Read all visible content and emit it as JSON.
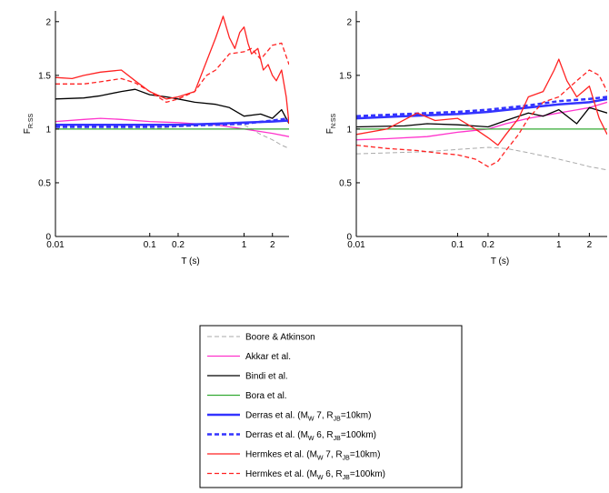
{
  "chart_data": [
    {
      "type": "line",
      "xscale": "log",
      "xlim": [
        0.01,
        3
      ],
      "ylim": [
        0,
        2.1
      ],
      "xlabel": "T (s)",
      "ylabel": "F",
      "ylabel_sub": "R:SS",
      "xticks": [
        0.01,
        0.1,
        0.2,
        1,
        2
      ],
      "xticklabels": [
        "0.01",
        "0.1",
        "0.2",
        "1",
        "2"
      ],
      "yticks": [
        0,
        0.5,
        1,
        1.5,
        2
      ],
      "yticklabels": [
        "0",
        "0.5",
        "1",
        "1.5",
        "2"
      ],
      "series": [
        {
          "key": "boore",
          "x": [
            0.01,
            0.05,
            0.1,
            0.2,
            0.5,
            1,
            1.5,
            2,
            2.5,
            3
          ],
          "y": [
            1.0,
            1.0,
            1.0,
            1.02,
            1.04,
            1.04,
            0.95,
            0.9,
            0.85,
            0.82
          ]
        },
        {
          "key": "akkar",
          "x": [
            0.01,
            0.02,
            0.03,
            0.05,
            0.1,
            0.2,
            0.3,
            0.5,
            1,
            2,
            3
          ],
          "y": [
            1.07,
            1.09,
            1.1,
            1.09,
            1.07,
            1.06,
            1.05,
            1.04,
            1.0,
            0.96,
            0.93
          ]
        },
        {
          "key": "bindi",
          "x": [
            0.01,
            0.02,
            0.03,
            0.05,
            0.07,
            0.1,
            0.15,
            0.2,
            0.3,
            0.5,
            0.7,
            1,
            1.5,
            2,
            2.5,
            3
          ],
          "y": [
            1.28,
            1.29,
            1.31,
            1.35,
            1.37,
            1.32,
            1.3,
            1.28,
            1.25,
            1.23,
            1.2,
            1.12,
            1.14,
            1.1,
            1.18,
            1.05
          ]
        },
        {
          "key": "bora",
          "x": [
            0.01,
            3
          ],
          "y": [
            1.0,
            1.0
          ]
        },
        {
          "key": "derras7",
          "x": [
            0.01,
            0.03,
            0.1,
            0.2,
            0.5,
            1,
            2,
            3
          ],
          "y": [
            1.04,
            1.04,
            1.04,
            1.04,
            1.05,
            1.06,
            1.07,
            1.08
          ]
        },
        {
          "key": "derras6",
          "x": [
            0.01,
            0.03,
            0.1,
            0.2,
            0.5,
            1,
            2,
            3
          ],
          "y": [
            1.02,
            1.02,
            1.02,
            1.03,
            1.04,
            1.05,
            1.08,
            1.1
          ]
        },
        {
          "key": "hermkes7",
          "x": [
            0.01,
            0.015,
            0.02,
            0.03,
            0.05,
            0.07,
            0.1,
            0.15,
            0.2,
            0.3,
            0.5,
            0.6,
            0.7,
            0.8,
            0.9,
            1,
            1.1,
            1.2,
            1.4,
            1.6,
            1.8,
            2,
            2.2,
            2.5,
            2.8,
            3
          ],
          "y": [
            1.48,
            1.47,
            1.5,
            1.53,
            1.55,
            1.45,
            1.35,
            1.28,
            1.3,
            1.35,
            1.85,
            2.05,
            1.85,
            1.75,
            1.9,
            1.95,
            1.8,
            1.7,
            1.75,
            1.55,
            1.6,
            1.5,
            1.45,
            1.55,
            1.3,
            1.05
          ]
        },
        {
          "key": "hermkes6",
          "x": [
            0.01,
            0.02,
            0.03,
            0.05,
            0.07,
            0.1,
            0.15,
            0.2,
            0.3,
            0.4,
            0.5,
            0.7,
            1,
            1.2,
            1.5,
            2,
            2.5,
            3
          ],
          "y": [
            1.42,
            1.42,
            1.44,
            1.47,
            1.43,
            1.35,
            1.25,
            1.28,
            1.35,
            1.5,
            1.55,
            1.7,
            1.72,
            1.75,
            1.65,
            1.78,
            1.8,
            1.6
          ]
        }
      ]
    },
    {
      "type": "line",
      "xscale": "log",
      "xlim": [
        0.01,
        3
      ],
      "ylim": [
        0,
        2.1
      ],
      "xlabel": "T (s)",
      "ylabel": "F",
      "ylabel_sub": "N:SS",
      "xticks": [
        0.01,
        0.1,
        0.2,
        1,
        2
      ],
      "xticklabels": [
        "0.01",
        "0.1",
        "0.2",
        "1",
        "2"
      ],
      "yticks": [
        0,
        0.5,
        1,
        1.5,
        2
      ],
      "yticklabels": [
        "0",
        "0.5",
        "1",
        "1.5",
        "2"
      ],
      "series": [
        {
          "key": "boore",
          "x": [
            0.01,
            0.05,
            0.1,
            0.2,
            0.3,
            0.5,
            1,
            1.5,
            2,
            3
          ],
          "y": [
            0.77,
            0.79,
            0.81,
            0.83,
            0.82,
            0.78,
            0.72,
            0.68,
            0.65,
            0.62
          ]
        },
        {
          "key": "akkar",
          "x": [
            0.01,
            0.02,
            0.05,
            0.1,
            0.2,
            0.3,
            0.5,
            1,
            2,
            3
          ],
          "y": [
            0.9,
            0.91,
            0.93,
            0.97,
            1.0,
            1.05,
            1.1,
            1.15,
            1.2,
            1.25
          ]
        },
        {
          "key": "bindi",
          "x": [
            0.01,
            0.03,
            0.05,
            0.1,
            0.2,
            0.3,
            0.5,
            0.7,
            1,
            1.5,
            2,
            3
          ],
          "y": [
            1.02,
            1.03,
            1.05,
            1.04,
            1.02,
            1.08,
            1.15,
            1.12,
            1.18,
            1.05,
            1.2,
            1.15
          ]
        },
        {
          "key": "bora",
          "x": [
            0.01,
            3
          ],
          "y": [
            1.0,
            1.0
          ]
        },
        {
          "key": "derras7",
          "x": [
            0.01,
            0.03,
            0.1,
            0.2,
            0.5,
            1,
            2,
            3
          ],
          "y": [
            1.1,
            1.12,
            1.14,
            1.16,
            1.2,
            1.23,
            1.25,
            1.28
          ]
        },
        {
          "key": "derras6",
          "x": [
            0.01,
            0.03,
            0.1,
            0.2,
            0.5,
            1,
            2,
            3
          ],
          "y": [
            1.12,
            1.14,
            1.16,
            1.18,
            1.22,
            1.26,
            1.28,
            1.3
          ]
        },
        {
          "key": "hermkes7",
          "x": [
            0.01,
            0.02,
            0.04,
            0.06,
            0.1,
            0.15,
            0.2,
            0.25,
            0.3,
            0.4,
            0.5,
            0.7,
            0.9,
            1.0,
            1.2,
            1.5,
            2,
            2.5,
            3
          ],
          "y": [
            0.95,
            1.0,
            1.15,
            1.08,
            1.1,
            1.0,
            0.92,
            0.85,
            0.95,
            1.1,
            1.3,
            1.35,
            1.55,
            1.65,
            1.45,
            1.3,
            1.4,
            1.1,
            0.95
          ]
        },
        {
          "key": "hermkes6",
          "x": [
            0.01,
            0.02,
            0.04,
            0.06,
            0.1,
            0.15,
            0.2,
            0.25,
            0.3,
            0.4,
            0.5,
            0.7,
            1,
            1.5,
            2,
            2.5,
            3
          ],
          "y": [
            0.85,
            0.82,
            0.8,
            0.78,
            0.76,
            0.72,
            0.65,
            0.7,
            0.8,
            0.95,
            1.1,
            1.25,
            1.3,
            1.45,
            1.55,
            1.5,
            1.35
          ]
        }
      ]
    }
  ],
  "legend": {
    "entries": [
      {
        "key": "boore",
        "label": "Boore & Atkinson",
        "color": "#aaaaaa",
        "dash": true,
        "width": 1
      },
      {
        "key": "akkar",
        "label": "Akkar et al.",
        "color": "#ff33cc",
        "dash": false,
        "width": 1.3
      },
      {
        "key": "bindi",
        "label": "Bindi et al.",
        "color": "#000000",
        "dash": false,
        "width": 1.3
      },
      {
        "key": "bora",
        "label": "Bora et al.",
        "color": "#33aa33",
        "dash": false,
        "width": 1.3
      },
      {
        "key": "derras7",
        "label_parts": [
          "Derras et al. (M",
          "W",
          " 7, R",
          "JB",
          "=10km)"
        ],
        "color": "#3333ff",
        "dash": false,
        "width": 2.5
      },
      {
        "key": "derras6",
        "label_parts": [
          "Derras et al. (M",
          "W",
          " 6, R",
          "JB",
          "=100km)"
        ],
        "color": "#3333ff",
        "dash": true,
        "width": 2.5
      },
      {
        "key": "hermkes7",
        "label_parts": [
          "Hermkes et al. (M",
          "W",
          " 7, R",
          "JB",
          "=10km)"
        ],
        "color": "#ff2222",
        "dash": false,
        "width": 1.3
      },
      {
        "key": "hermkes6",
        "label_parts": [
          "Hermkes et al. (M",
          "W",
          " 6, R",
          "JB",
          "=100km)"
        ],
        "color": "#ff2222",
        "dash": true,
        "width": 1.3
      }
    ]
  }
}
